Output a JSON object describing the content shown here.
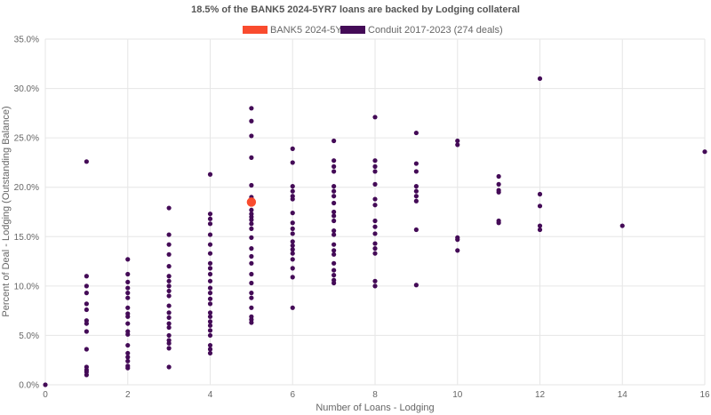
{
  "chart_data": {
    "type": "scatter",
    "title": "18.5% of the BANK5 2024-5YR7 loans are backed by Lodging collateral",
    "xlabel": "Number of Loans - Lodging",
    "ylabel": "Percent of Deal - Lodging (Outstanding Balance)",
    "xlim": [
      0,
      16
    ],
    "ylim": [
      0,
      35
    ],
    "x_ticks": [
      0,
      2,
      4,
      6,
      8,
      10,
      12,
      14,
      16
    ],
    "y_ticks": [
      "0.0%",
      "5.0%",
      "10.0%",
      "15.0%",
      "20.0%",
      "25.0%",
      "30.0%",
      "35.0%"
    ],
    "grid": true,
    "legend_position": "top",
    "series": [
      {
        "name": "BANK5 2024-5YR7",
        "color": "#f94b2e",
        "points": [
          [
            5,
            18.5
          ]
        ]
      },
      {
        "name": "Conduit 2017-2023 (274 deals)",
        "color": "#440b57",
        "points": [
          [
            0,
            0.0
          ],
          [
            1,
            22.6
          ],
          [
            1,
            11.0
          ],
          [
            1,
            10.0
          ],
          [
            1,
            9.3
          ],
          [
            1,
            8.2
          ],
          [
            1,
            7.6
          ],
          [
            1,
            6.5
          ],
          [
            1,
            6.2
          ],
          [
            1,
            5.4
          ],
          [
            1,
            3.6
          ],
          [
            1,
            1.8
          ],
          [
            1,
            1.5
          ],
          [
            1,
            1.3
          ],
          [
            1,
            1.0
          ],
          [
            2,
            12.7
          ],
          [
            2,
            11.2
          ],
          [
            2,
            10.4
          ],
          [
            2,
            9.8
          ],
          [
            2,
            9.3
          ],
          [
            2,
            8.8
          ],
          [
            2,
            7.8
          ],
          [
            2,
            7.2
          ],
          [
            2,
            6.9
          ],
          [
            2,
            6.2
          ],
          [
            2,
            5.4
          ],
          [
            2,
            5.1
          ],
          [
            2,
            4.0
          ],
          [
            2,
            3.2
          ],
          [
            2,
            2.8
          ],
          [
            2,
            2.4
          ],
          [
            2,
            1.9
          ],
          [
            2,
            1.7
          ],
          [
            3,
            17.9
          ],
          [
            3,
            15.2
          ],
          [
            3,
            14.2
          ],
          [
            3,
            13.2
          ],
          [
            3,
            12.0
          ],
          [
            3,
            11.0
          ],
          [
            3,
            10.5
          ],
          [
            3,
            10.0
          ],
          [
            3,
            9.5
          ],
          [
            3,
            9.0
          ],
          [
            3,
            8.0
          ],
          [
            3,
            7.3
          ],
          [
            3,
            6.8
          ],
          [
            3,
            6.2
          ],
          [
            3,
            5.8
          ],
          [
            3,
            5.0
          ],
          [
            3,
            4.5
          ],
          [
            3,
            4.2
          ],
          [
            3,
            3.7
          ],
          [
            3,
            1.8
          ],
          [
            4,
            21.3
          ],
          [
            4,
            17.3
          ],
          [
            4,
            16.8
          ],
          [
            4,
            16.3
          ],
          [
            4,
            15.2
          ],
          [
            4,
            14.2
          ],
          [
            4,
            13.3
          ],
          [
            4,
            12.3
          ],
          [
            4,
            11.8
          ],
          [
            4,
            11.2
          ],
          [
            4,
            10.5
          ],
          [
            4,
            9.8
          ],
          [
            4,
            9.3
          ],
          [
            4,
            8.7
          ],
          [
            4,
            8.2
          ],
          [
            4,
            7.3
          ],
          [
            4,
            6.9
          ],
          [
            4,
            6.4
          ],
          [
            4,
            6.0
          ],
          [
            4,
            5.5
          ],
          [
            4,
            5.0
          ],
          [
            4,
            4.0
          ],
          [
            4,
            3.6
          ],
          [
            4,
            3.2
          ],
          [
            5,
            28.0
          ],
          [
            5,
            26.7
          ],
          [
            5,
            25.2
          ],
          [
            5,
            23.0
          ],
          [
            5,
            20.2
          ],
          [
            5,
            19.0
          ],
          [
            5,
            17.7
          ],
          [
            5,
            17.3
          ],
          [
            5,
            17.0
          ],
          [
            5,
            16.7
          ],
          [
            5,
            16.3
          ],
          [
            5,
            15.8
          ],
          [
            5,
            14.9
          ],
          [
            5,
            13.8
          ],
          [
            5,
            13.0
          ],
          [
            5,
            12.3
          ],
          [
            5,
            11.2
          ],
          [
            5,
            10.3
          ],
          [
            5,
            9.3
          ],
          [
            5,
            8.8
          ],
          [
            5,
            7.8
          ],
          [
            5,
            6.9
          ],
          [
            5,
            6.6
          ],
          [
            5,
            6.3
          ],
          [
            6,
            23.9
          ],
          [
            6,
            22.5
          ],
          [
            6,
            20.1
          ],
          [
            6,
            19.6
          ],
          [
            6,
            19.1
          ],
          [
            6,
            18.8
          ],
          [
            6,
            17.4
          ],
          [
            6,
            16.4
          ],
          [
            6,
            15.8
          ],
          [
            6,
            15.3
          ],
          [
            6,
            14.5
          ],
          [
            6,
            14.1
          ],
          [
            6,
            13.7
          ],
          [
            6,
            13.3
          ],
          [
            6,
            12.7
          ],
          [
            6,
            11.8
          ],
          [
            6,
            10.9
          ],
          [
            6,
            7.8
          ],
          [
            7,
            24.7
          ],
          [
            7,
            22.7
          ],
          [
            7,
            22.1
          ],
          [
            7,
            21.6
          ],
          [
            7,
            20.1
          ],
          [
            7,
            19.6
          ],
          [
            7,
            19.1
          ],
          [
            7,
            18.4
          ],
          [
            7,
            17.5
          ],
          [
            7,
            17.1
          ],
          [
            7,
            16.6
          ],
          [
            7,
            15.6
          ],
          [
            7,
            15.2
          ],
          [
            7,
            14.2
          ],
          [
            7,
            13.6
          ],
          [
            7,
            13.2
          ],
          [
            7,
            12.3
          ],
          [
            7,
            11.6
          ],
          [
            7,
            11.1
          ],
          [
            7,
            10.6
          ],
          [
            7,
            10.3
          ],
          [
            8,
            27.1
          ],
          [
            8,
            22.7
          ],
          [
            8,
            22.1
          ],
          [
            8,
            21.6
          ],
          [
            8,
            20.3
          ],
          [
            8,
            18.8
          ],
          [
            8,
            18.2
          ],
          [
            8,
            16.6
          ],
          [
            8,
            16.0
          ],
          [
            8,
            15.3
          ],
          [
            8,
            14.3
          ],
          [
            8,
            13.8
          ],
          [
            8,
            13.3
          ],
          [
            8,
            10.5
          ],
          [
            8,
            10.0
          ],
          [
            9,
            25.5
          ],
          [
            9,
            22.4
          ],
          [
            9,
            21.6
          ],
          [
            9,
            20.1
          ],
          [
            9,
            19.6
          ],
          [
            9,
            19.1
          ],
          [
            9,
            18.6
          ],
          [
            9,
            15.7
          ],
          [
            9,
            10.1
          ],
          [
            10,
            24.7
          ],
          [
            10,
            24.3
          ],
          [
            10,
            14.9
          ],
          [
            10,
            14.7
          ],
          [
            10,
            13.6
          ],
          [
            11,
            21.1
          ],
          [
            11,
            20.3
          ],
          [
            11,
            19.7
          ],
          [
            11,
            19.5
          ],
          [
            11,
            16.6
          ],
          [
            11,
            16.4
          ],
          [
            12,
            31.0
          ],
          [
            12,
            19.3
          ],
          [
            12,
            18.1
          ],
          [
            12,
            16.1
          ],
          [
            12,
            15.7
          ],
          [
            14,
            16.1
          ],
          [
            16,
            23.6
          ]
        ]
      }
    ]
  }
}
